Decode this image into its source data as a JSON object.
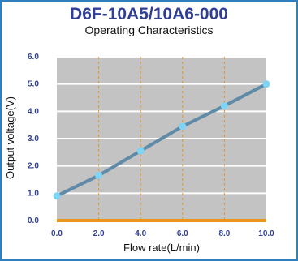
{
  "chart_data": {
    "type": "line",
    "title": "D6F-10A5/10A6-000",
    "subtitle": "Operating Characteristics",
    "xlabel": "Flow rate(L/min)",
    "ylabel": "Output voltage(V)",
    "xlim": [
      0,
      10
    ],
    "ylim": [
      0,
      6
    ],
    "xticks": [
      "0.0",
      "2.0",
      "4.0",
      "6.0",
      "8.0",
      "10.0"
    ],
    "yticks": [
      "0.0",
      "1.0",
      "2.0",
      "3.0",
      "4.0",
      "5.0",
      "6.0"
    ],
    "series": [
      {
        "x": [
          0,
          2,
          4,
          6,
          8,
          10
        ],
        "y": [
          0.9,
          1.65,
          2.55,
          3.45,
          4.2,
          5.0
        ]
      }
    ],
    "grid": true,
    "legend": "none"
  },
  "colors": {
    "frame": "#2f7fbf",
    "title": "#2f3f96",
    "plot_background": "#c3c3c3",
    "horizontal_grid": "#ffffff",
    "vertical_grid": "#e8961e",
    "baseline": "#e8961e",
    "line": "#5f8aa8",
    "marker": "#7fd3f3",
    "tick_text": "#2f3f96"
  }
}
